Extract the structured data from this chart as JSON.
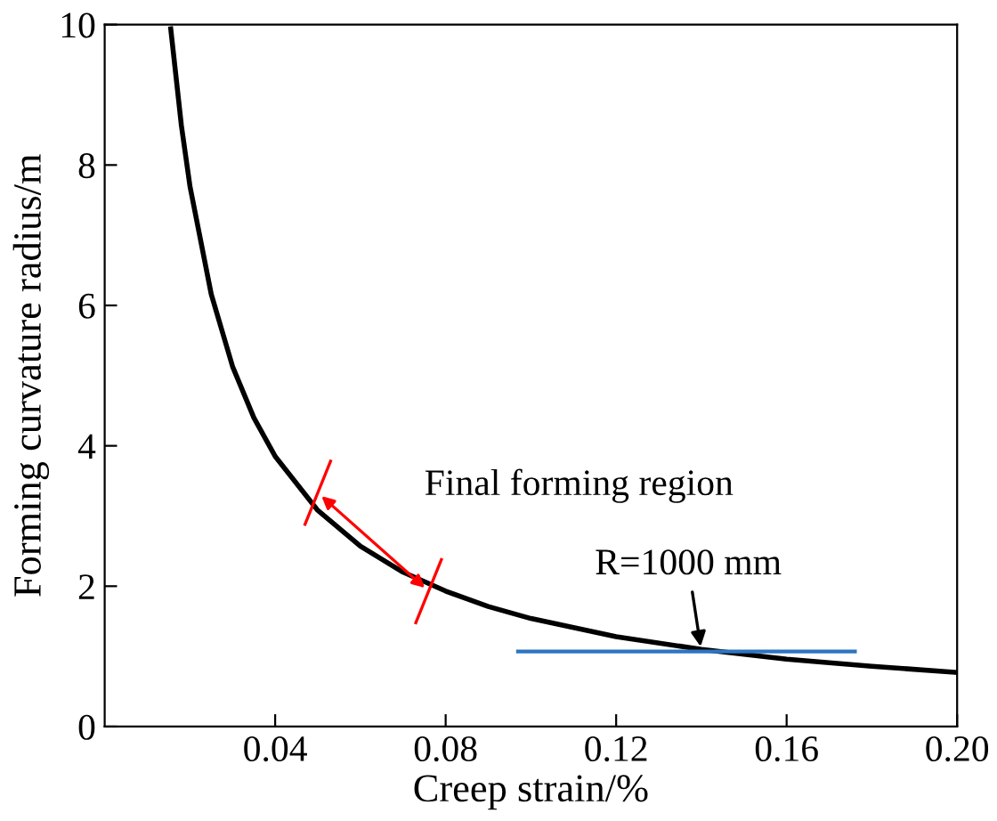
{
  "chart_data": {
    "type": "line",
    "xlabel": "Creep strain/%",
    "ylabel": "Forming curvature radius/m",
    "x": [
      0.0155,
      0.018,
      0.02,
      0.025,
      0.03,
      0.035,
      0.04,
      0.05,
      0.06,
      0.07,
      0.08,
      0.09,
      0.1,
      0.12,
      0.14,
      0.16,
      0.18,
      0.2
    ],
    "series": [
      {
        "color": "#000000",
        "values": [
          9.94,
          8.56,
          7.7,
          6.16,
          5.13,
          4.4,
          3.85,
          3.08,
          2.57,
          2.2,
          1.93,
          1.71,
          1.54,
          1.28,
          1.1,
          0.96,
          0.86,
          0.77
        ]
      },
      {
        "color": "#2e75c0",
        "x": [
          0.097,
          0.176
        ],
        "values": [
          1.07,
          1.07
        ]
      }
    ],
    "xlim": [
      0,
      0.2
    ],
    "ylim": [
      0,
      10
    ],
    "xticks": [
      0.04,
      0.08,
      0.12,
      0.16,
      {
        "value": 0.2,
        "label": "0.20"
      }
    ],
    "yticks": [
      0,
      2,
      4,
      6,
      8,
      10
    ],
    "annotations": [
      {
        "text": "Final forming region",
        "x": 0.063,
        "y": 2.55
      },
      {
        "text": "R=1000 mm",
        "x": 0.14,
        "y": 1.07
      }
    ],
    "grid": false,
    "legend": false
  }
}
